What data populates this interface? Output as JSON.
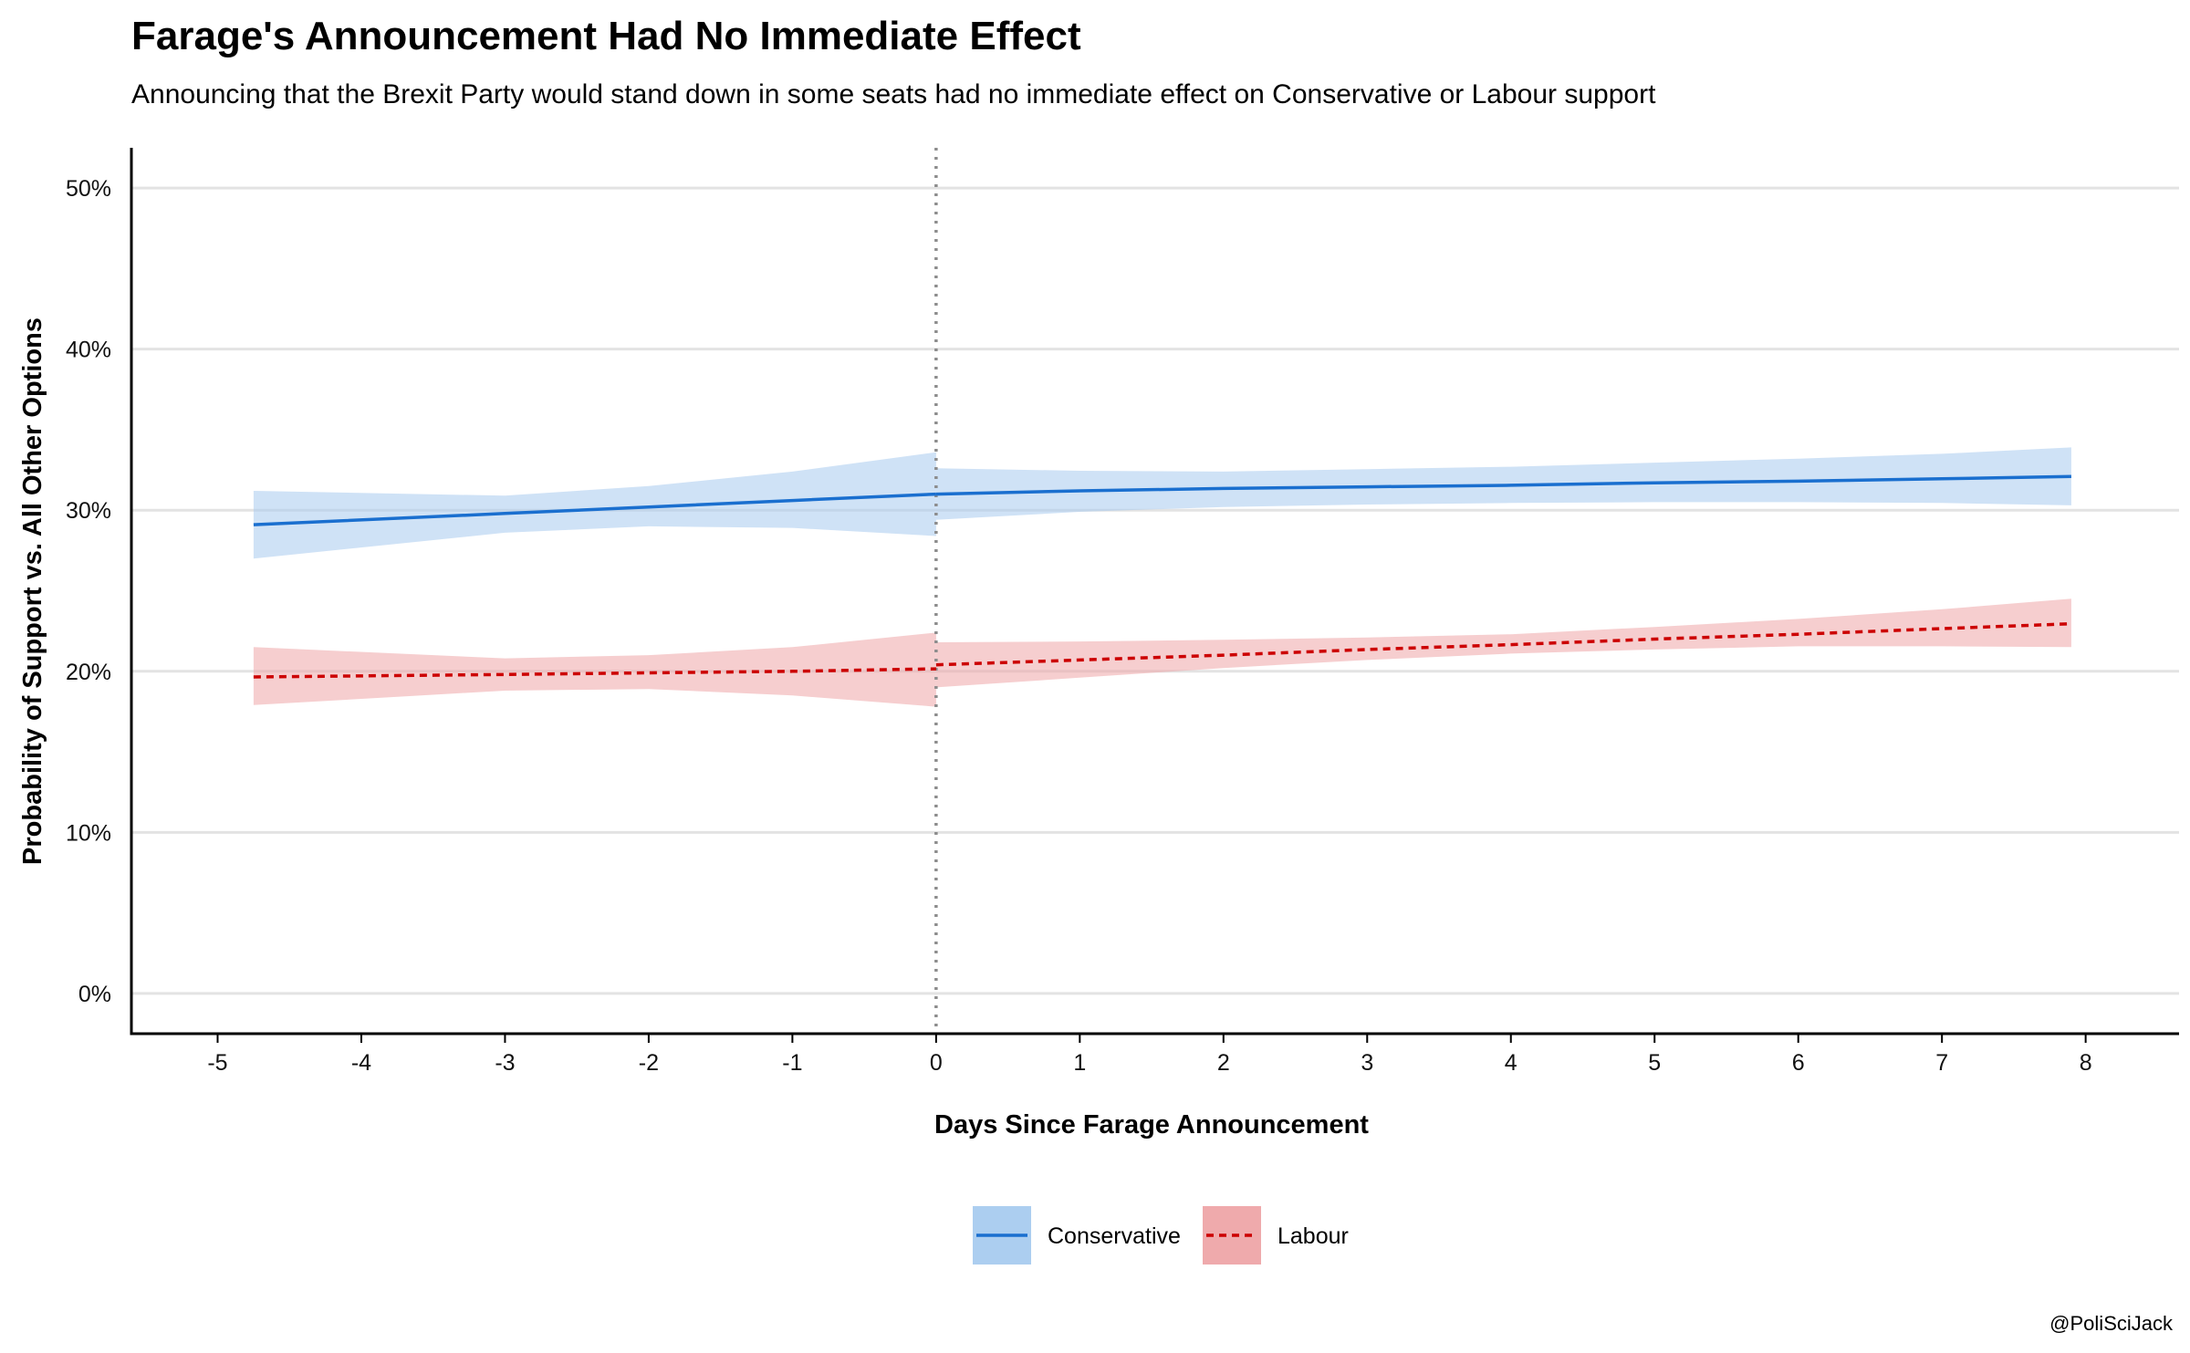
{
  "chart_data": {
    "type": "line",
    "title": "Farage's Announcement Had No Immediate Effect",
    "subtitle": "Announcing that the Brexit Party would stand down in some seats had no immediate effect on Conservative or Labour support",
    "xlabel": "Days Since Farage Announcement",
    "ylabel": "Probability of Support vs. All Other Options",
    "caption": "@PoliSciJack",
    "xlim": [
      -5.6,
      8.65
    ],
    "ylim": [
      -2.5,
      52.5
    ],
    "x_ticks": [
      -5,
      -4,
      -3,
      -2,
      -1,
      0,
      1,
      2,
      3,
      4,
      5,
      6,
      7,
      8
    ],
    "x_tick_labels": [
      "-5",
      "-4",
      "-3",
      "-2",
      "-1",
      "0",
      "1",
      "2",
      "3",
      "4",
      "5",
      "6",
      "7",
      "8"
    ],
    "y_ticks": [
      0,
      10,
      20,
      30,
      40,
      50
    ],
    "y_tick_labels": [
      "0%",
      "10%",
      "20%",
      "30%",
      "40%",
      "50%"
    ],
    "grid": "horizontal",
    "reference_line_x": 0,
    "legend_position": "bottom",
    "series": [
      {
        "name": "Conservative",
        "line_color": "#1a6fcf",
        "ribbon_color": "#a8cbef",
        "line_style": "solid",
        "segments": [
          {
            "x": [
              -4.75,
              -3,
              -2,
              -1,
              0
            ],
            "y": [
              29.1,
              29.8,
              30.2,
              30.6,
              31.0
            ],
            "lower": [
              27.0,
              28.6,
              29.0,
              28.9,
              28.4
            ],
            "upper": [
              31.2,
              30.9,
              31.5,
              32.4,
              33.6
            ]
          },
          {
            "x": [
              0,
              1,
              2,
              3,
              4,
              5,
              6,
              7,
              7.9
            ],
            "y": [
              31.0,
              31.2,
              31.35,
              31.45,
              31.55,
              31.7,
              31.8,
              31.95,
              32.1
            ],
            "lower": [
              29.4,
              29.9,
              30.2,
              30.35,
              30.45,
              30.5,
              30.5,
              30.45,
              30.3
            ],
            "upper": [
              32.6,
              32.45,
              32.4,
              32.55,
              32.7,
              32.95,
              33.2,
              33.5,
              33.9
            ]
          }
        ]
      },
      {
        "name": "Labour",
        "line_color": "#cc0000",
        "ribbon_color": "#eea5a8",
        "line_style": "dashed",
        "segments": [
          {
            "x": [
              -4.75,
              -3,
              -2,
              -1,
              0
            ],
            "y": [
              19.65,
              19.8,
              19.9,
              20.0,
              20.15
            ],
            "lower": [
              17.9,
              18.8,
              18.9,
              18.5,
              17.8
            ],
            "upper": [
              21.5,
              20.8,
              21.0,
              21.5,
              22.4
            ]
          },
          {
            "x": [
              0,
              1,
              2,
              3,
              4,
              5,
              6,
              7,
              7.9
            ],
            "y": [
              20.4,
              20.7,
              21.0,
              21.35,
              21.65,
              22.0,
              22.3,
              22.65,
              22.95
            ],
            "lower": [
              19.0,
              19.6,
              20.2,
              20.7,
              21.1,
              21.35,
              21.55,
              21.55,
              21.5
            ],
            "upper": [
              21.8,
              21.85,
              21.95,
              22.1,
              22.3,
              22.75,
              23.25,
              23.85,
              24.5
            ]
          }
        ]
      }
    ]
  }
}
